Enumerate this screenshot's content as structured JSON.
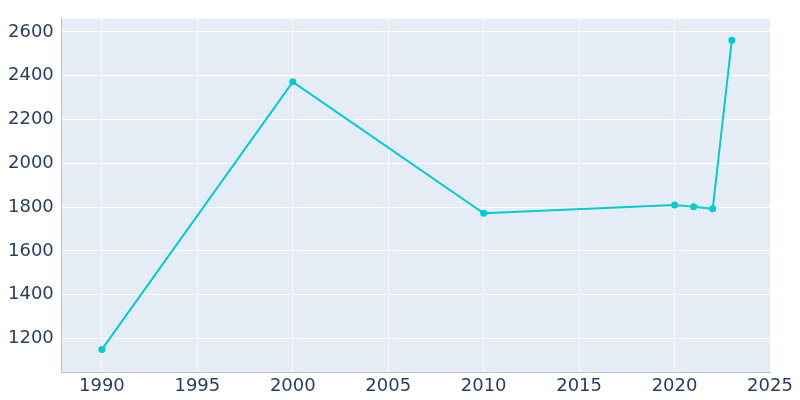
{
  "chart_data": {
    "type": "line",
    "x": [
      1990,
      2000,
      2010,
      2020,
      2021,
      2022,
      2023
    ],
    "values": [
      1150,
      2372,
      1772,
      1810,
      1802,
      1792,
      2562
    ],
    "color": "#00cdcd",
    "marker": "circle",
    "xlim": [
      1987.9,
      2025
    ],
    "xticks": [
      1990,
      1995,
      2000,
      2005,
      2010,
      2015,
      2020,
      2025
    ],
    "ylim": [
      1045,
      2660
    ],
    "yticks": [
      1200,
      1400,
      1600,
      1800,
      2000,
      2200,
      2400,
      2600
    ],
    "grid": true
  }
}
